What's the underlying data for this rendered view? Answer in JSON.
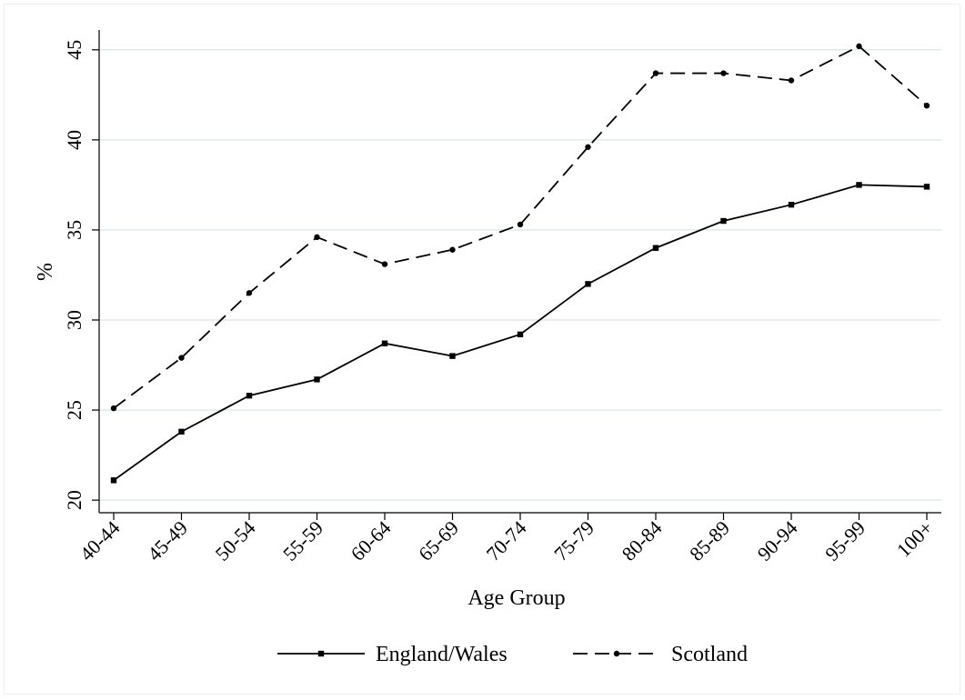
{
  "chart_data": {
    "type": "line",
    "title": "",
    "xlabel": "Age Group",
    "ylabel": "%",
    "categories": [
      "40-44",
      "45-49",
      "50-54",
      "55-59",
      "60-64",
      "65-69",
      "70-74",
      "75-79",
      "80-84",
      "85-89",
      "90-94",
      "95-99",
      "100+"
    ],
    "yticks": [
      20,
      25,
      30,
      35,
      40,
      45
    ],
    "ylim": [
      19.3,
      46.1
    ],
    "grid": "horizontal",
    "legend_position": "bottom",
    "series": [
      {
        "name": "England/Wales",
        "line_style": "solid",
        "marker": "square",
        "color": "#000000",
        "values": [
          21.1,
          23.8,
          25.8,
          26.7,
          28.7,
          28.0,
          29.2,
          32.0,
          34.0,
          35.5,
          36.4,
          37.5,
          37.4
        ]
      },
      {
        "name": "Scotland",
        "line_style": "dashed",
        "marker": "circle",
        "color": "#000000",
        "values": [
          25.1,
          27.9,
          31.5,
          34.6,
          33.1,
          33.9,
          35.3,
          39.6,
          43.7,
          43.7,
          43.3,
          45.2,
          41.9
        ]
      }
    ]
  },
  "style": {
    "grid_color": "#dfeaec",
    "axis_color": "#000000"
  }
}
